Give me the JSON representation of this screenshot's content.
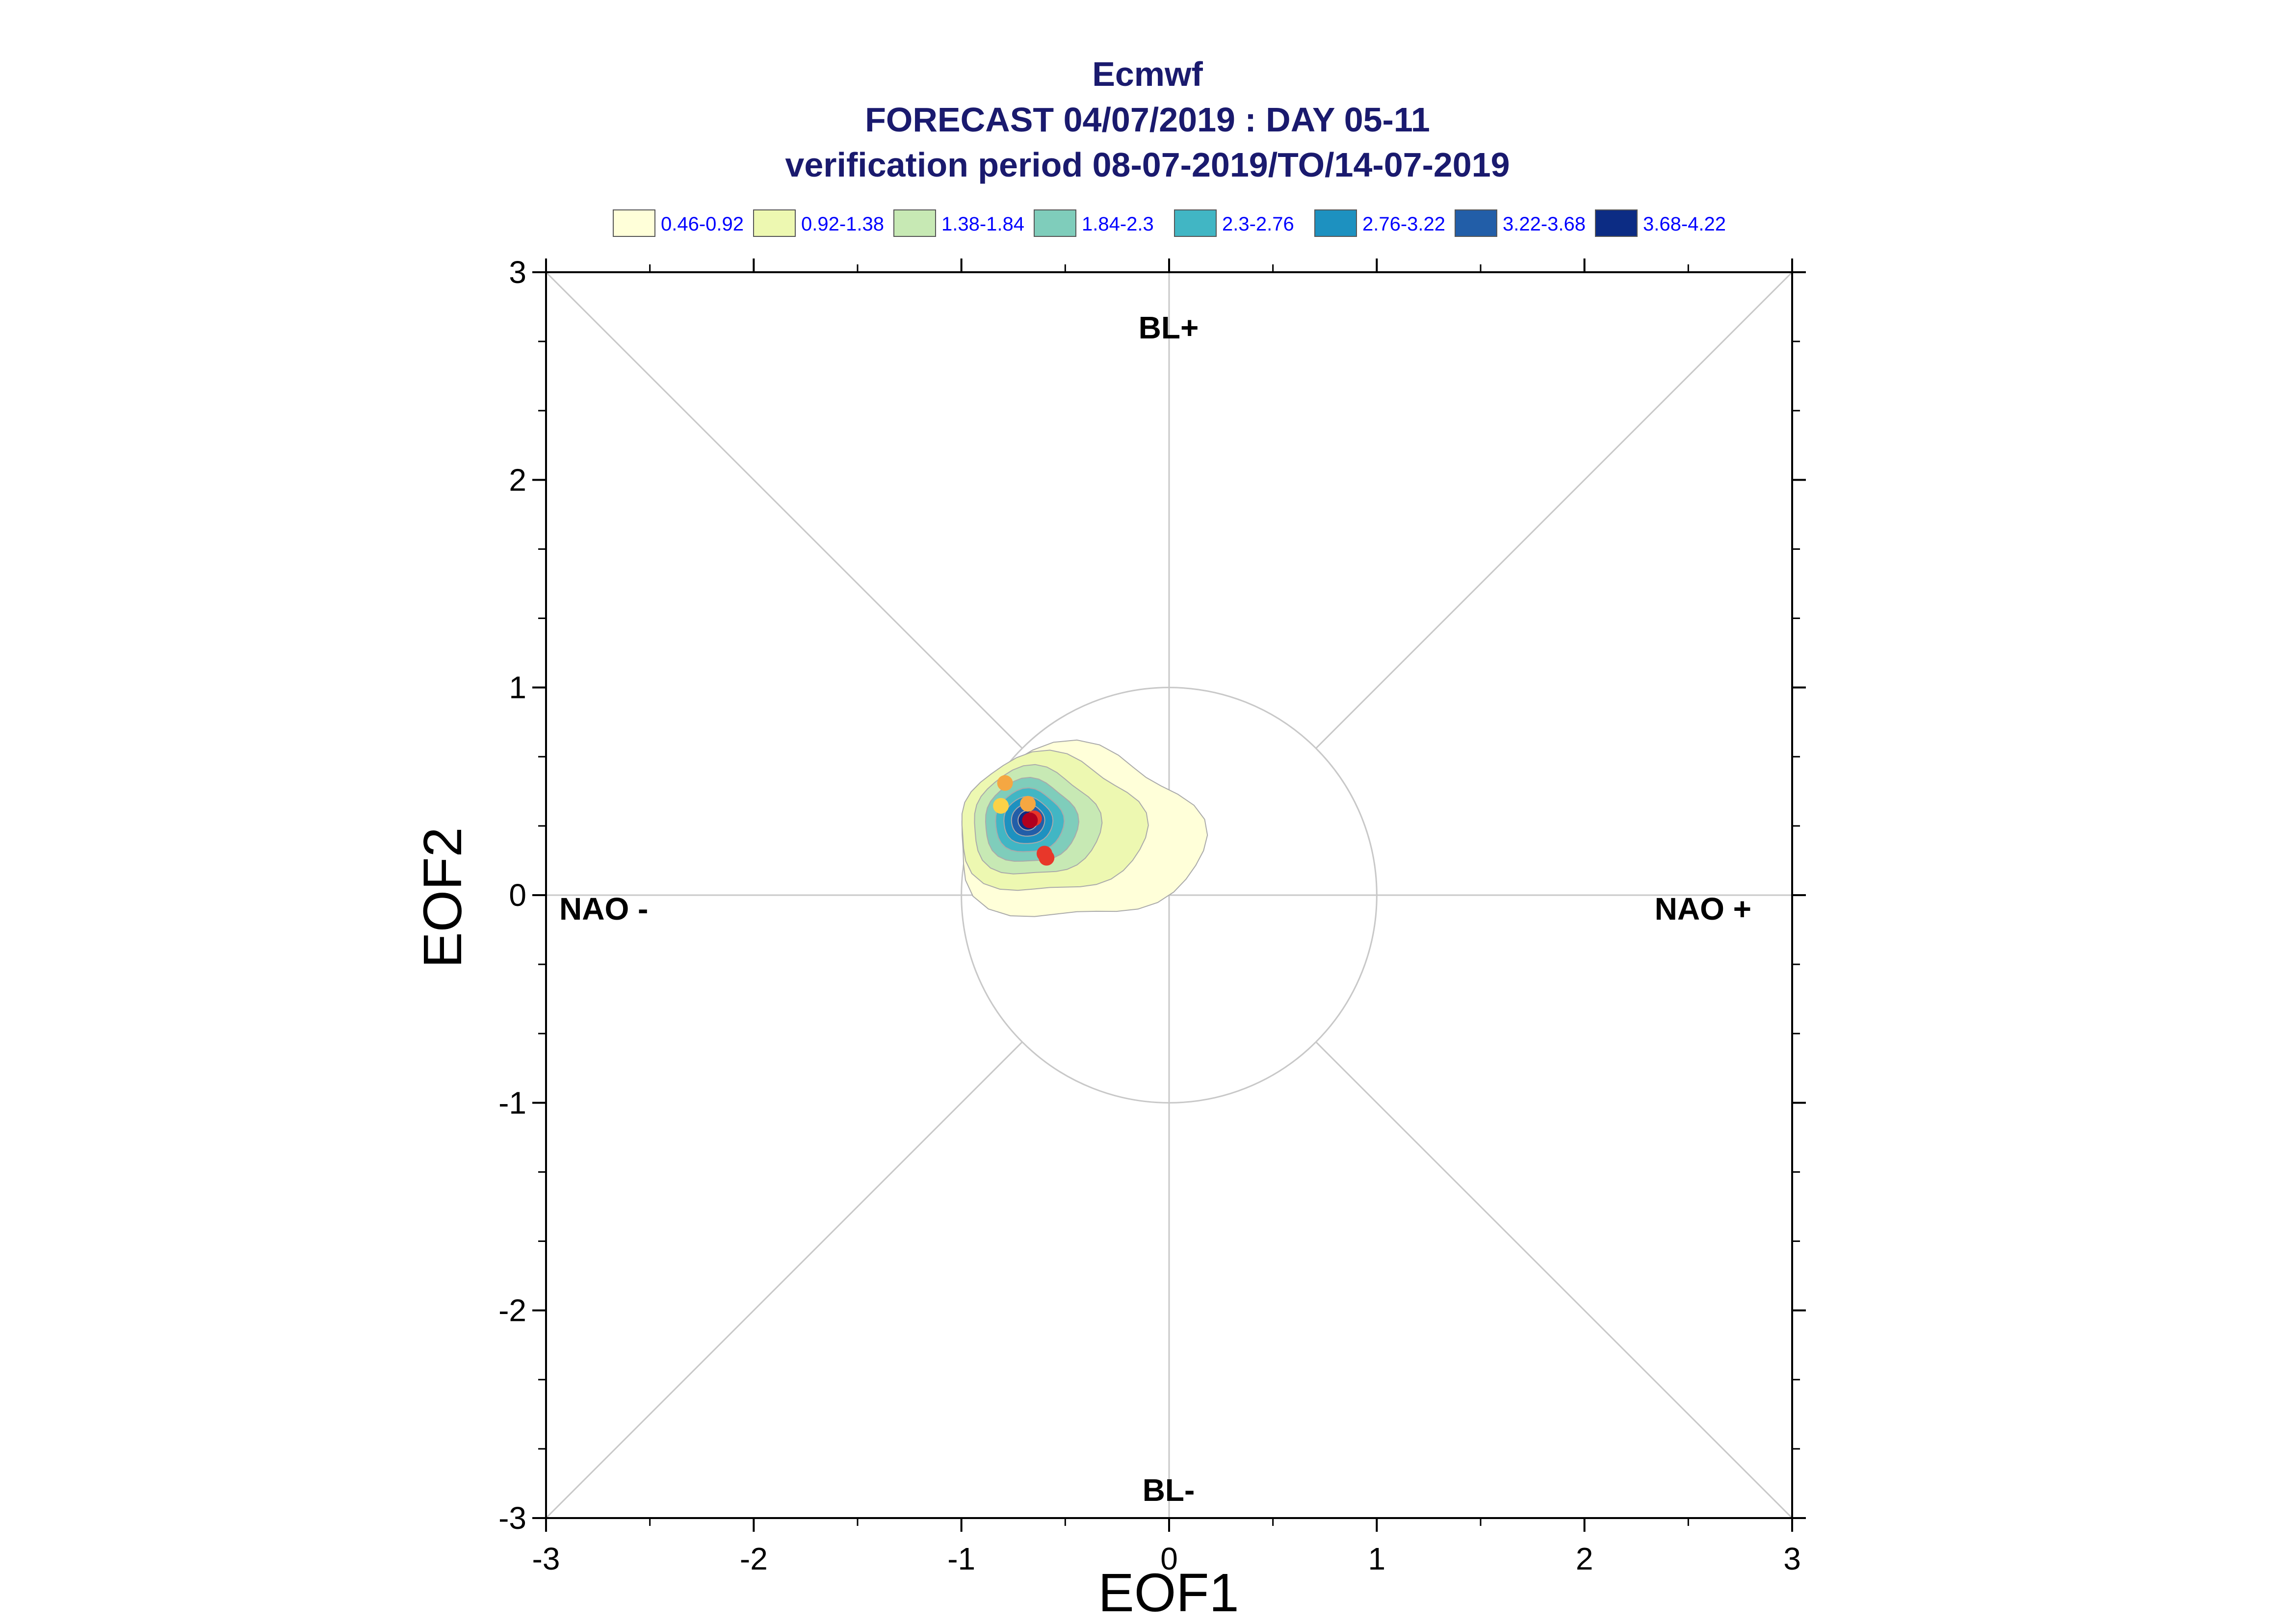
{
  "title_lines": [
    "Ecmwf",
    "FORECAST 04/07/2019 : DAY 05-11",
    "verification period 08-07-2019/TO/14-07-2019"
  ],
  "chart_data": {
    "type": "scatter",
    "xlabel": "EOF1",
    "ylabel": "EOF2",
    "xlim": [
      -3,
      3
    ],
    "ylim": [
      -3,
      3
    ],
    "x_ticks": [
      "-3",
      "-2",
      "-1",
      "0",
      "1",
      "2",
      "3"
    ],
    "y_ticks": [
      "-3",
      "-2",
      "-1",
      "0",
      "1",
      "2",
      "3"
    ],
    "reference_circle_radius": 1,
    "diagonals": true,
    "regime_labels": {
      "top": "BL+",
      "bottom": "BL-",
      "left": "NAO -",
      "right": "NAO +"
    },
    "legend": {
      "placement": "top",
      "entries": [
        {
          "label": "0.46-0.92",
          "color": "#ffffd9"
        },
        {
          "label": "0.92-1.38",
          "color": "#edf8b1"
        },
        {
          "label": "1.38-1.84",
          "color": "#c7e9b4"
        },
        {
          "label": "1.84-2.3",
          "color": "#7fcdbb"
        },
        {
          "label": "2.3-2.76",
          "color": "#41b6c4"
        },
        {
          "label": "2.76-3.22",
          "color": "#1d91c0"
        },
        {
          "label": "3.22-3.68",
          "color": "#225ea8"
        },
        {
          "label": "3.68-4.22",
          "color": "#0c2c84"
        }
      ]
    },
    "density_center": [
      -0.68,
      0.36
    ],
    "points": [
      {
        "x": -0.79,
        "y": 0.54,
        "color": "#f5a742"
      },
      {
        "x": -0.81,
        "y": 0.43,
        "color": "#fbd247"
      },
      {
        "x": -0.68,
        "y": 0.44,
        "color": "#f5a742"
      },
      {
        "x": -0.65,
        "y": 0.37,
        "color": "#e8372a"
      },
      {
        "x": -0.67,
        "y": 0.36,
        "color": "#b0001e"
      },
      {
        "x": -0.6,
        "y": 0.2,
        "color": "#e8372a"
      },
      {
        "x": -0.59,
        "y": 0.18,
        "color": "#e8372a"
      }
    ]
  }
}
